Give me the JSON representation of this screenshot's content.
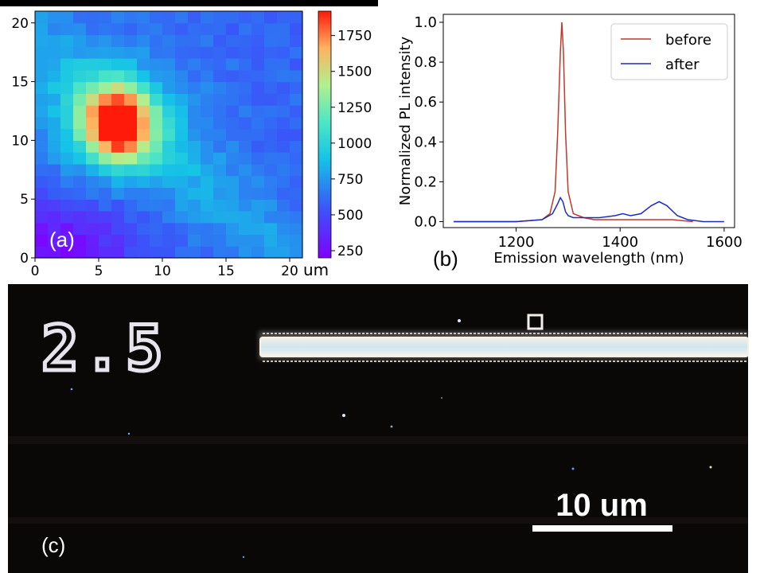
{
  "colors": {
    "before": "#c0392b",
    "after": "#1f2bbf",
    "micro_bg": "#0a0807",
    "scale_text": "#ffffff"
  },
  "chart_data": [
    {
      "type": "heatmap",
      "panel_label": "(a)",
      "xlim": [
        0,
        21
      ],
      "ylim": [
        0,
        21
      ],
      "x_ticks": [
        "0",
        "5",
        "10",
        "15",
        "20"
      ],
      "y_ticks": [
        "0",
        "5",
        "10",
        "15",
        "20"
      ],
      "x_unit": "um",
      "colorbar": {
        "range": [
          200,
          1920
        ],
        "ticks": [
          "250",
          "500",
          "750",
          "1000",
          "1250",
          "1500",
          "1750"
        ],
        "colormap": "rainbow"
      },
      "grid_size": [
        21,
        21
      ],
      "peak": {
        "x": 6.5,
        "y": 11.5,
        "value": 1900
      },
      "background_level": 600,
      "low_region": "bottom-left"
    },
    {
      "type": "line",
      "panel_label": "(b)",
      "xlabel": "Emission wavelength (nm)",
      "ylabel": "Normalized PL intensity",
      "xlim": [
        1060,
        1620
      ],
      "ylim": [
        -0.03,
        1.04
      ],
      "x_ticks": [
        "1200",
        "1400",
        "1600"
      ],
      "y_ticks": [
        "0.0",
        "0.2",
        "0.4",
        "0.6",
        "0.8",
        "1.0"
      ],
      "legend": "top-right",
      "series": [
        {
          "name": "before",
          "x": [
            1080,
            1200,
            1250,
            1265,
            1275,
            1280,
            1285,
            1288,
            1291,
            1295,
            1300,
            1310,
            1330,
            1350,
            1400,
            1450,
            1500,
            1540
          ],
          "y": [
            0.0,
            0.0,
            0.01,
            0.04,
            0.15,
            0.45,
            0.85,
            1.0,
            0.85,
            0.45,
            0.15,
            0.04,
            0.02,
            0.01,
            0.01,
            0.01,
            0.01,
            0.0
          ]
        },
        {
          "name": "after",
          "x": [
            1080,
            1200,
            1250,
            1270,
            1280,
            1285,
            1290,
            1295,
            1300,
            1310,
            1330,
            1360,
            1390,
            1405,
            1420,
            1440,
            1460,
            1475,
            1490,
            1510,
            1530,
            1560,
            1600
          ],
          "y": [
            0.0,
            0.0,
            0.01,
            0.04,
            0.09,
            0.12,
            0.1,
            0.05,
            0.03,
            0.02,
            0.02,
            0.02,
            0.03,
            0.04,
            0.03,
            0.04,
            0.08,
            0.1,
            0.08,
            0.03,
            0.01,
            0.0,
            0.0
          ]
        }
      ]
    }
  ],
  "micrograph": {
    "panel_label": "(c)",
    "marker_text": "2.5",
    "scale_bar_label": "10 um"
  }
}
